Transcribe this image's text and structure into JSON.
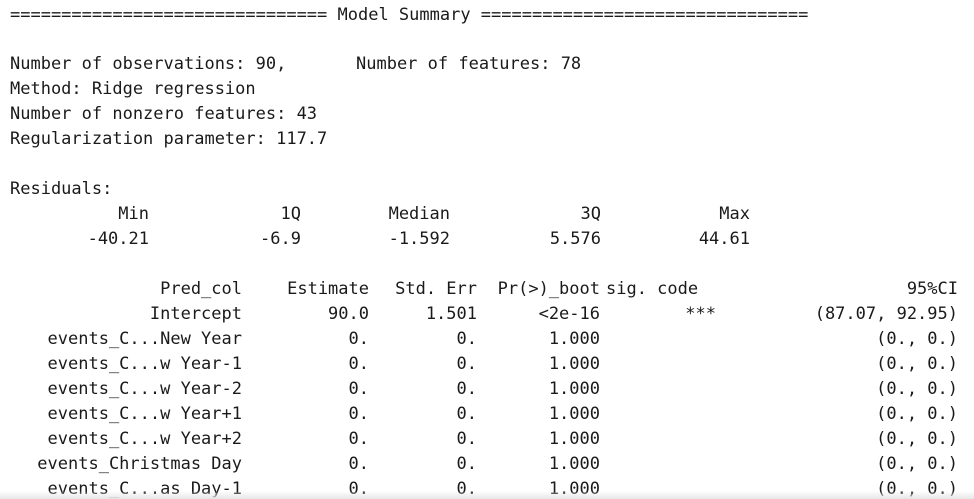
{
  "header": "=============================== Model Summary ================================",
  "info": {
    "observations": "Number of observations: 90,",
    "features": "Number of features: 78",
    "method": "Method: Ridge regression",
    "nonzero": "Number of nonzero features: 43",
    "regularization": "Regularization parameter: 117.7"
  },
  "residuals": {
    "label": "Residuals:",
    "headers": [
      "Min",
      "1Q",
      "Median",
      "3Q",
      "Max"
    ],
    "values": [
      "-40.21",
      "-6.9",
      "-1.592",
      "5.576",
      "44.61"
    ]
  },
  "coef_table": {
    "headers": {
      "pred_col": "Pred_col",
      "estimate": "Estimate",
      "std_err": "Std. Err",
      "pr_boot": "Pr(>)_boot",
      "sig_code": "sig. code",
      "ci": "95%CI"
    },
    "rows": [
      {
        "pred_col": "Intercept",
        "estimate": "90.0",
        "std_err": "1.501",
        "pr_boot": "<2e-16",
        "sig_code": "***",
        "ci": "(87.07, 92.95)"
      },
      {
        "pred_col": "events_C...New Year",
        "estimate": "0.",
        "std_err": "0.",
        "pr_boot": "1.000",
        "sig_code": "",
        "ci": "(0., 0.)"
      },
      {
        "pred_col": "events_C...w Year-1",
        "estimate": "0.",
        "std_err": "0.",
        "pr_boot": "1.000",
        "sig_code": "",
        "ci": "(0., 0.)"
      },
      {
        "pred_col": "events_C...w Year-2",
        "estimate": "0.",
        "std_err": "0.",
        "pr_boot": "1.000",
        "sig_code": "",
        "ci": "(0., 0.)"
      },
      {
        "pred_col": "events_C...w Year+1",
        "estimate": "0.",
        "std_err": "0.",
        "pr_boot": "1.000",
        "sig_code": "",
        "ci": "(0., 0.)"
      },
      {
        "pred_col": "events_C...w Year+2",
        "estimate": "0.",
        "std_err": "0.",
        "pr_boot": "1.000",
        "sig_code": "",
        "ci": "(0., 0.)"
      },
      {
        "pred_col": "events_Christmas Day",
        "estimate": "0.",
        "std_err": "0.",
        "pr_boot": "1.000",
        "sig_code": "",
        "ci": "(0., 0.)"
      },
      {
        "pred_col": "events_C...as Day-1",
        "estimate": "0.",
        "std_err": "0.",
        "pr_boot": "1.000",
        "sig_code": "",
        "ci": "(0., 0.)"
      }
    ]
  }
}
